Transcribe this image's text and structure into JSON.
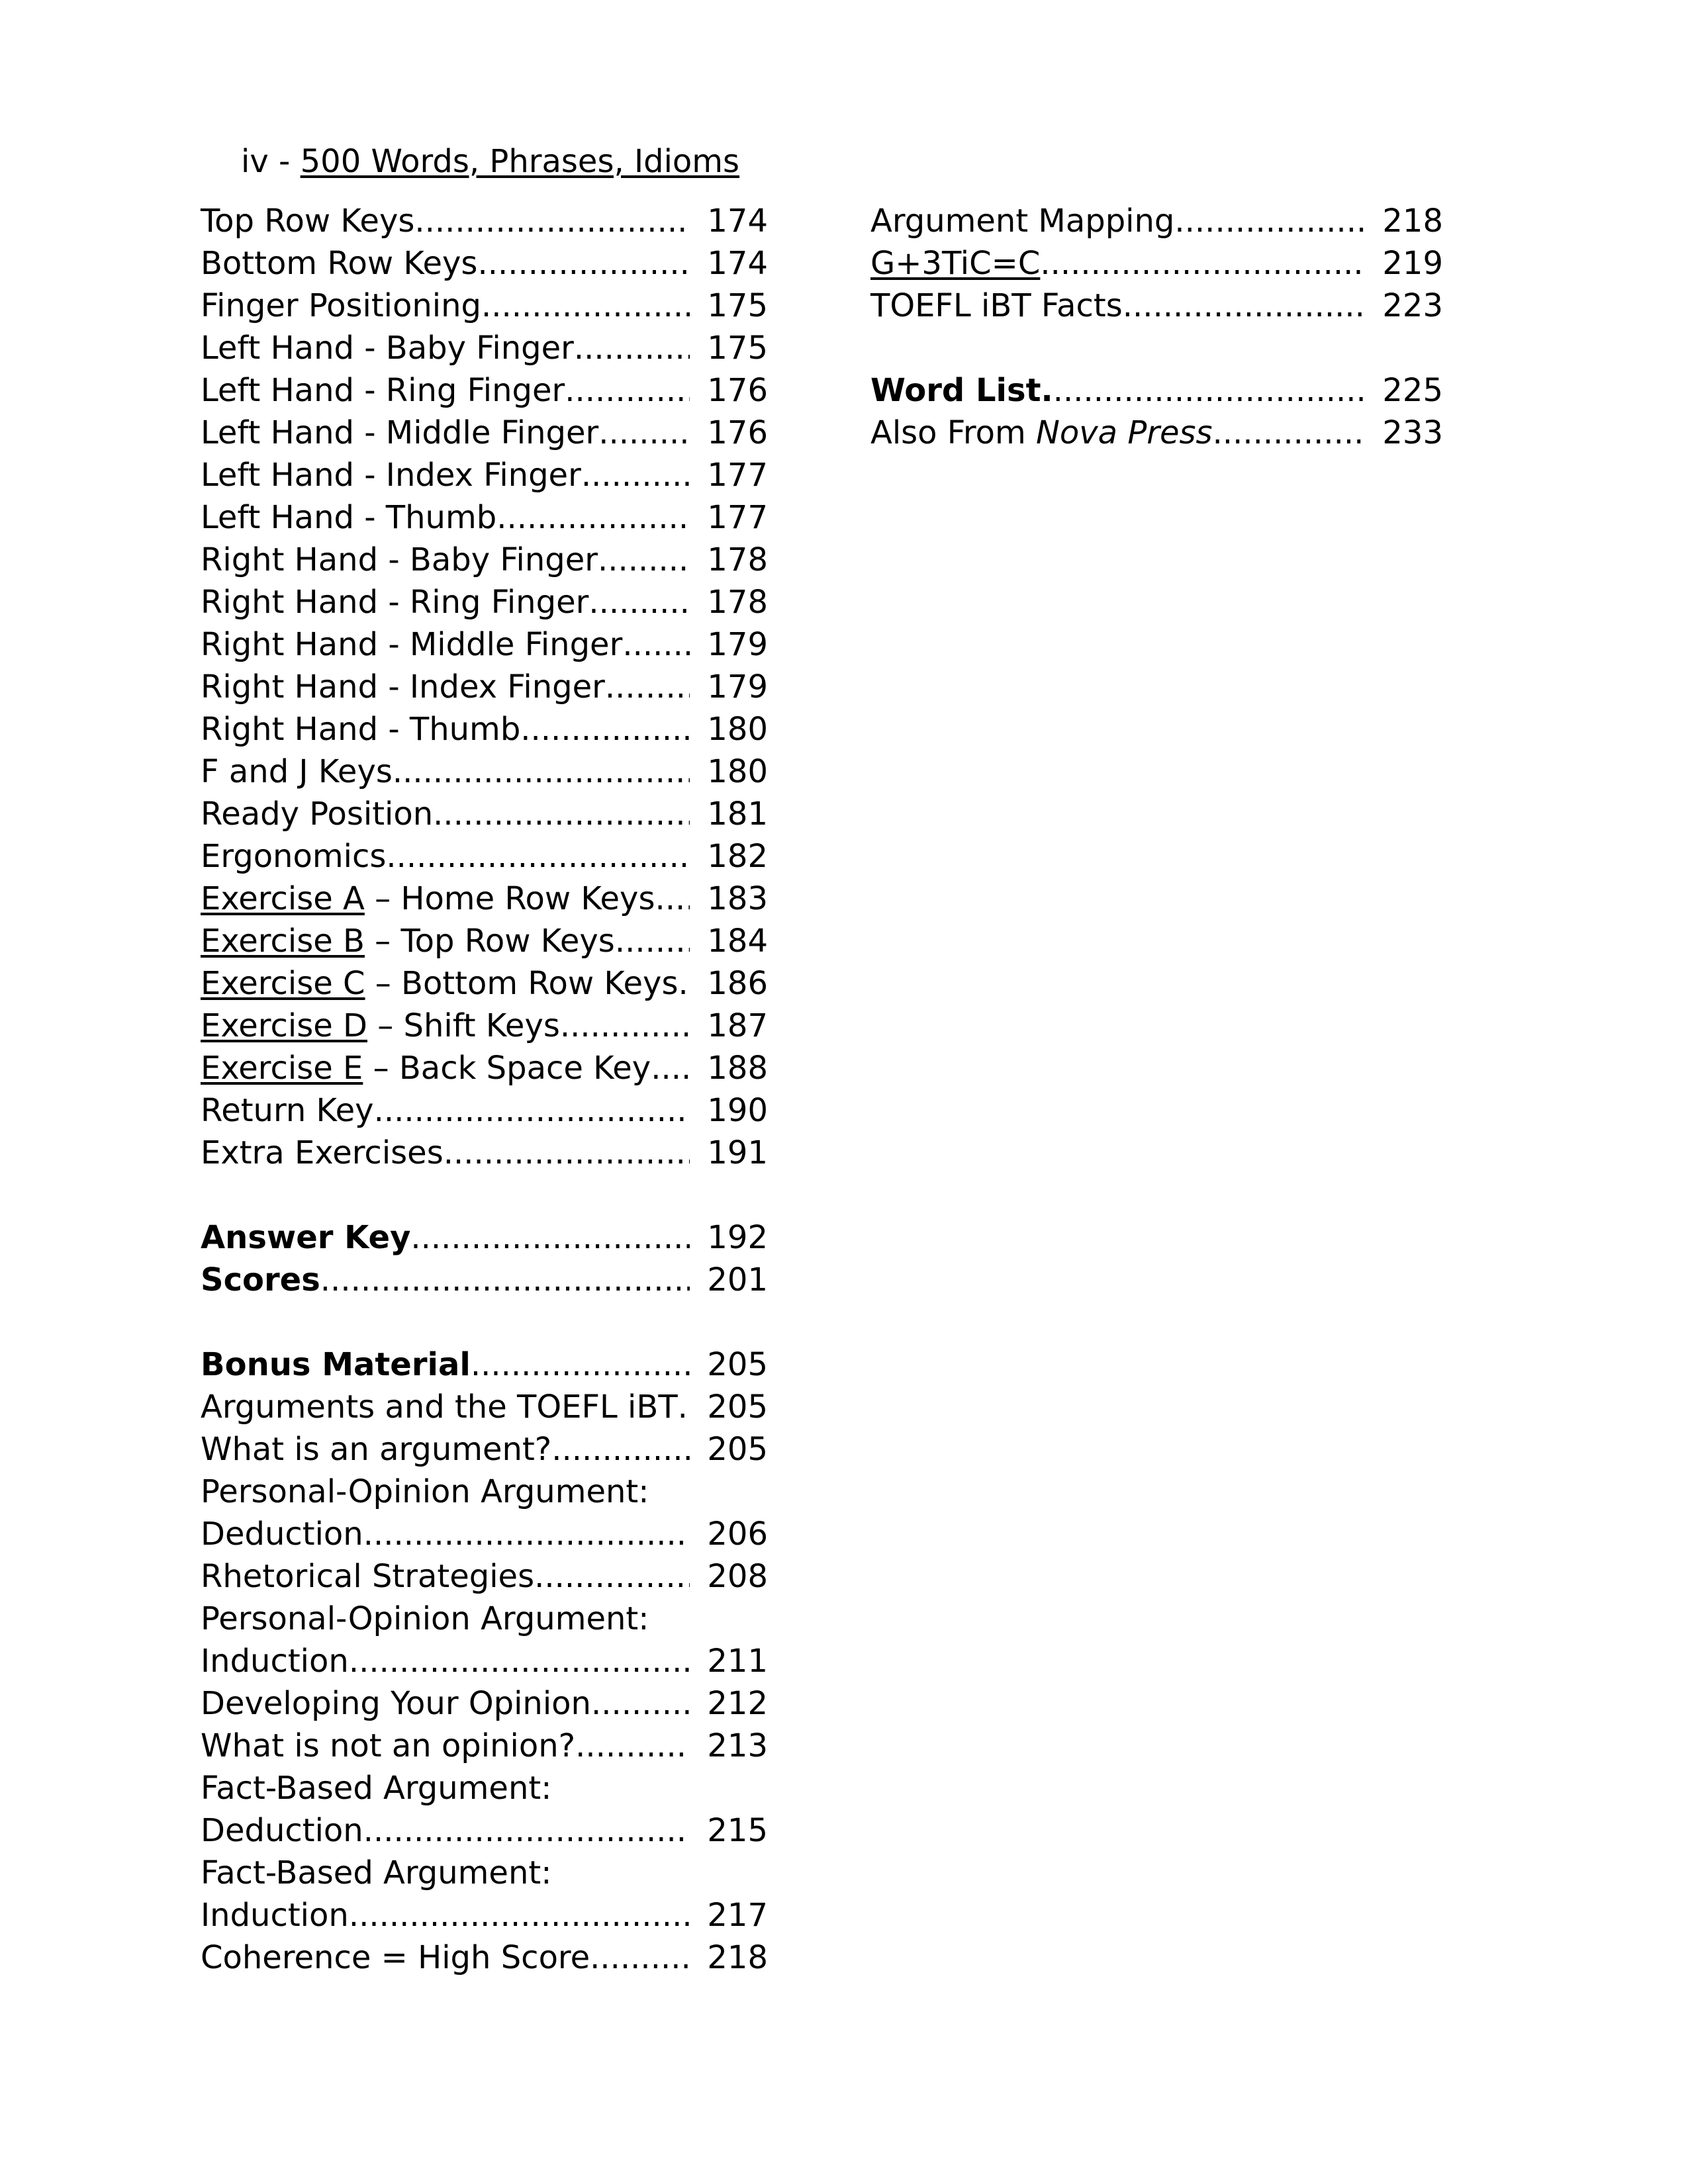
{
  "colors": {
    "text": "#000000",
    "background": "#ffffff"
  },
  "header": {
    "prefix": "iv - ",
    "title": "500 Words, Phrases, Idioms"
  },
  "leader_dots": "......................................................................",
  "toc": {
    "left": {
      "entries": [
        {
          "t": "Top Row Keys",
          "page": "174"
        },
        {
          "t": "Bottom Row Keys",
          "page": "174"
        },
        {
          "t": "Finger Positioning",
          "page": "175"
        },
        {
          "t": "Left Hand - Baby Finger",
          "page": "175"
        },
        {
          "t": "Left Hand - Ring Finger",
          "page": "176"
        },
        {
          "t": "Left Hand - Middle Finger",
          "page": "176"
        },
        {
          "t": "Left Hand - Index Finger",
          "page": "177"
        },
        {
          "t": "Left Hand - Thumb",
          "page": "177"
        },
        {
          "t": "Right Hand - Baby Finger",
          "page": "178"
        },
        {
          "t": "Right Hand - Ring Finger",
          "page": "178"
        },
        {
          "t": "Right Hand - Middle Finger",
          "page": "179"
        },
        {
          "t": "Right Hand - Index Finger",
          "page": "179"
        },
        {
          "t": "Right Hand - Thumb",
          "page": "180"
        },
        {
          "t": "F and J Keys",
          "page": "180"
        },
        {
          "t": "Ready Position",
          "page": "181"
        },
        {
          "t": "Ergonomics",
          "page": "182"
        },
        {
          "parts": [
            {
              "t": "Exercise A",
              "u": true
            },
            {
              "t": " – Home Row Keys"
            }
          ],
          "page": "183"
        },
        {
          "parts": [
            {
              "t": "Exercise B",
              "u": true
            },
            {
              "t": " – Top Row Keys"
            }
          ],
          "page": "184"
        },
        {
          "parts": [
            {
              "t": "Exercise C",
              "u": true
            },
            {
              "t": " – Bottom Row Keys"
            }
          ],
          "page": "186"
        },
        {
          "parts": [
            {
              "t": "Exercise D",
              "u": true
            },
            {
              "t": " – Shift Keys"
            }
          ],
          "page": "187"
        },
        {
          "parts": [
            {
              "t": "Exercise E",
              "u": true
            },
            {
              "t": " – Back Space Key"
            }
          ],
          "page": "188"
        },
        {
          "t": "Return Key",
          "page": "190"
        },
        {
          "t": "Extra Exercises",
          "page": "191"
        },
        {
          "spacer": true
        },
        {
          "parts": [
            {
              "t": "Answer Key",
              "b": true
            }
          ],
          "page": "192"
        },
        {
          "parts": [
            {
              "t": "Scores",
              "b": true
            }
          ],
          "page": "201"
        },
        {
          "spacer": true
        },
        {
          "parts": [
            {
              "t": "Bonus Material",
              "b": true
            }
          ],
          "page": "205"
        },
        {
          "t": "Arguments and the TOEFL iBT",
          "page": "205"
        },
        {
          "t": "What is an argument?",
          "page": "205"
        },
        {
          "t": "Personal-Opinion Argument:"
        },
        {
          "t": "Deduction",
          "page": "206"
        },
        {
          "t": "Rhetorical Strategies",
          "page": "208"
        },
        {
          "t": "Personal-Opinion Argument:"
        },
        {
          "t": "Induction",
          "page": "211"
        },
        {
          "t": "Developing Your Opinion",
          "page": "212"
        },
        {
          "t": "What is not an opinion?",
          "page": "213"
        },
        {
          "t": "Fact-Based Argument:"
        },
        {
          "t": "Deduction",
          "page": "215"
        },
        {
          "t": "Fact-Based Argument:"
        },
        {
          "t": "Induction",
          "page": "217"
        },
        {
          "t": "Coherence = High Score",
          "page": "218"
        }
      ]
    },
    "right": {
      "entries": [
        {
          "t": "Argument Mapping",
          "page": "218"
        },
        {
          "parts": [
            {
              "t": "G+3TiC=C",
              "u": true
            }
          ],
          "page": "219"
        },
        {
          "t": "TOEFL iBT Facts",
          "page": "223"
        },
        {
          "spacer": true
        },
        {
          "parts": [
            {
              "t": "Word List.",
              "b": true
            }
          ],
          "page": "225"
        },
        {
          "parts": [
            {
              "t": "Also From "
            },
            {
              "t": "Nova Press",
              "i": true
            }
          ],
          "page": "233"
        }
      ]
    }
  }
}
